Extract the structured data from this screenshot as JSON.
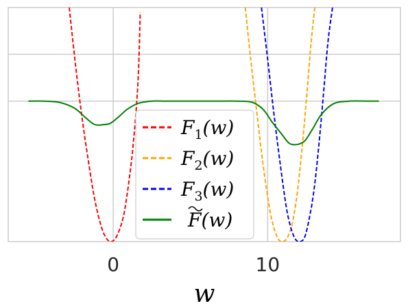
{
  "chart_data": {
    "type": "line",
    "xlabel": "w",
    "ylabel": "",
    "title": "",
    "xlim": [
      -6.8,
      18.6
    ],
    "ylim": [
      0,
      1
    ],
    "xticks": [
      0,
      10
    ],
    "xtick_labels": [
      "0",
      "10"
    ],
    "grid": true,
    "legend": {
      "placement": "lower-center",
      "entries": [
        {
          "series": "F1",
          "label_main": "F",
          "label_sub": "1",
          "label_tail": "(w)",
          "tilde": false
        },
        {
          "series": "F2",
          "label_main": "F",
          "label_sub": "2",
          "label_tail": "(w)",
          "tilde": false
        },
        {
          "series": "F3",
          "label_main": "F",
          "label_sub": "3",
          "label_tail": "(w)",
          "tilde": false
        },
        {
          "series": "Ftilde",
          "label_main": "F",
          "label_sub": "",
          "label_tail": "(w)",
          "tilde": true
        }
      ]
    },
    "series": [
      {
        "id": "F1",
        "name": "F1(w)",
        "color": "#ff0000",
        "style": "dashed",
        "x": [
          -2.85,
          -2.4,
          -2.0,
          -1.6,
          -1.2,
          -0.8,
          -0.5,
          -0.2,
          0.1,
          0.4,
          0.7,
          1.0,
          1.3,
          1.6,
          1.75
        ],
        "y": [
          1.0,
          0.73,
          0.52,
          0.34,
          0.18,
          0.07,
          0.02,
          0.0,
          0.01,
          0.05,
          0.12,
          0.25,
          0.42,
          0.68,
          0.98
        ]
      },
      {
        "id": "F2",
        "name": "F2(w)",
        "color": "#ffa500",
        "style": "dashed",
        "x": [
          8.55,
          8.9,
          9.3,
          9.7,
          10.1,
          10.4,
          10.7,
          11.0,
          11.3,
          11.6,
          11.9,
          12.2,
          12.5,
          12.8,
          13.05
        ],
        "y": [
          1.0,
          0.78,
          0.55,
          0.33,
          0.15,
          0.06,
          0.01,
          0.0,
          0.02,
          0.08,
          0.2,
          0.38,
          0.6,
          0.84,
          1.0
        ]
      },
      {
        "id": "F3",
        "name": "F3(w)",
        "color": "#0000ff",
        "style": "dashed",
        "x": [
          9.6,
          10.0,
          10.4,
          10.8,
          11.2,
          11.5,
          11.8,
          12.1,
          12.4,
          12.7,
          13.0,
          13.3,
          13.6,
          13.9,
          14.2
        ],
        "y": [
          1.0,
          0.78,
          0.55,
          0.34,
          0.15,
          0.06,
          0.01,
          0.0,
          0.02,
          0.1,
          0.22,
          0.4,
          0.62,
          0.85,
          1.0
        ]
      },
      {
        "id": "Ftilde",
        "name": "F~(w)",
        "color": "#008000",
        "style": "solid",
        "x": [
          -5.5,
          -4.5,
          -3.5,
          -2.5,
          -1.8,
          -1.2,
          -0.6,
          -0.2,
          0.3,
          0.9,
          1.6,
          2.5,
          3.5,
          5.0,
          6.5,
          8.0,
          9.0,
          9.7,
          10.3,
          10.9,
          11.4,
          11.9,
          12.4,
          12.9,
          13.5,
          14.3,
          15.3,
          16.5,
          17.2
        ],
        "y": [
          0.6,
          0.6,
          0.595,
          0.57,
          0.53,
          0.5,
          0.5,
          0.505,
          0.53,
          0.565,
          0.59,
          0.6,
          0.6,
          0.6,
          0.6,
          0.6,
          0.595,
          0.565,
          0.51,
          0.46,
          0.42,
          0.415,
          0.43,
          0.48,
          0.545,
          0.59,
          0.6,
          0.6,
          0.6
        ]
      }
    ]
  }
}
